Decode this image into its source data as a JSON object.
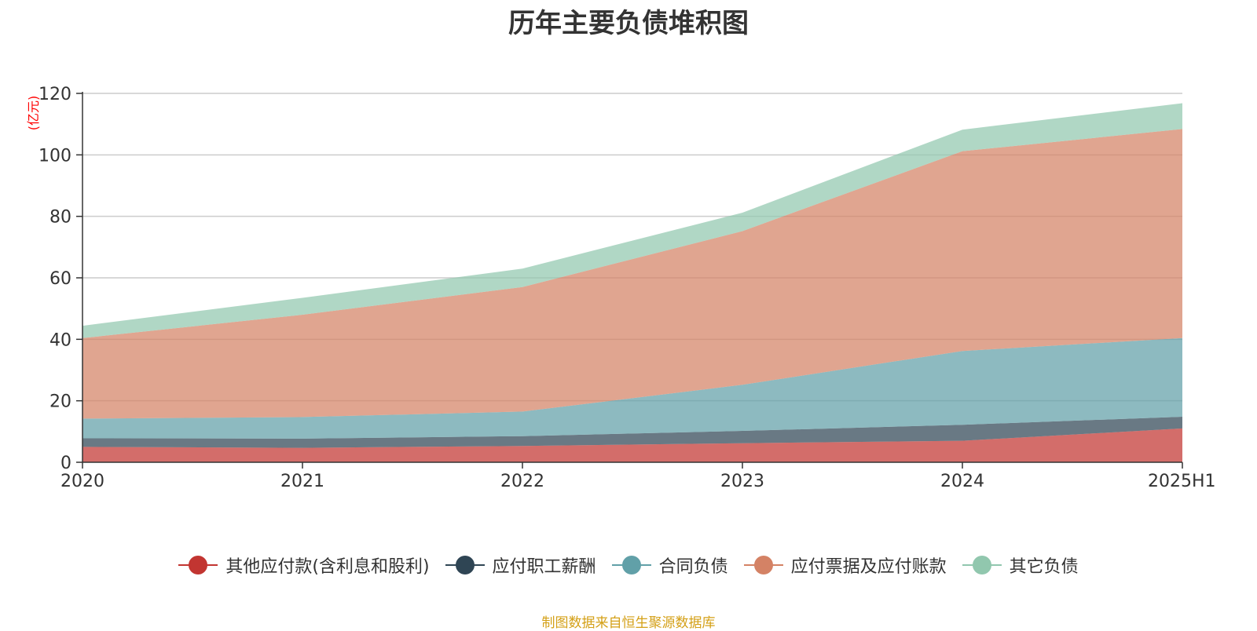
{
  "chart_data": {
    "type": "area",
    "stacked": true,
    "title": "历年主要负债堆积图",
    "ylabel": "(亿元)",
    "xlabel": "",
    "categories": [
      "2020",
      "2021",
      "2022",
      "2023",
      "2024",
      "2025H1"
    ],
    "ylim": [
      0,
      120
    ],
    "yticks": [
      0,
      20,
      40,
      60,
      80,
      100,
      120
    ],
    "grid": true,
    "legend_position": "bottom",
    "series": [
      {
        "name": "其他应付款(含利息和股利)",
        "color": "#c23531",
        "values": [
          5,
          4.7,
          5.3,
          6.2,
          7,
          11
        ]
      },
      {
        "name": "应付职工薪酬",
        "color": "#2f4554",
        "values": [
          2.8,
          3,
          3.2,
          4,
          5.2,
          3.8
        ]
      },
      {
        "name": "合同负债",
        "color": "#61a0a8",
        "values": [
          6.4,
          7,
          8,
          15,
          24,
          25.6
        ]
      },
      {
        "name": "应付票据及应付账款",
        "color": "#d48265",
        "values": [
          26.2,
          33.3,
          40.5,
          50,
          65,
          68
        ]
      },
      {
        "name": "其它负债",
        "color": "#91c7ae",
        "values": [
          4,
          5.5,
          6,
          6,
          7,
          8.4
        ]
      }
    ]
  },
  "footer": {
    "source": "制图数据来自恒生聚源数据库"
  }
}
